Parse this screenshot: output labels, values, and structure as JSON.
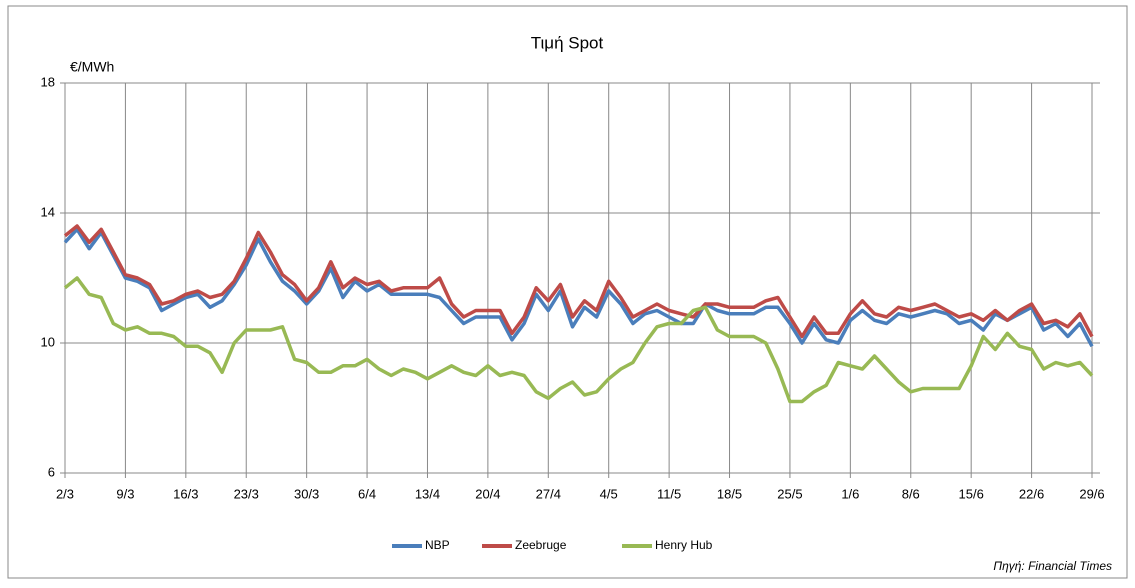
{
  "chart_data": {
    "type": "line",
    "title": "Τιμή Spot",
    "y_label": "€/MWh",
    "source": "Πηγή: Financial Times",
    "categories": [
      "2/3",
      null,
      null,
      null,
      null,
      "9/3",
      null,
      null,
      null,
      null,
      "16/3",
      null,
      null,
      null,
      null,
      "23/3",
      null,
      null,
      null,
      null,
      "30/3",
      null,
      null,
      null,
      null,
      "6/4",
      null,
      null,
      null,
      null,
      "13/4",
      null,
      null,
      null,
      null,
      "20/4",
      null,
      null,
      null,
      null,
      "27/4",
      null,
      null,
      null,
      null,
      "4/5",
      null,
      null,
      null,
      null,
      "11/5",
      null,
      null,
      null,
      null,
      "18/5",
      null,
      null,
      null,
      null,
      "25/5",
      null,
      null,
      null,
      null,
      "1/6",
      null,
      null,
      null,
      null,
      "8/6",
      null,
      null,
      null,
      null,
      "15/6",
      null,
      null,
      null,
      null,
      "22/6",
      null,
      null,
      null,
      null,
      "29/6"
    ],
    "series": [
      {
        "name": "NBP",
        "color": "#4a7ebb",
        "values": [
          13.1,
          13.5,
          12.9,
          13.4,
          12.7,
          12.0,
          11.9,
          11.7,
          11.0,
          11.2,
          11.4,
          11.5,
          11.1,
          11.3,
          11.8,
          12.4,
          13.2,
          12.5,
          11.9,
          11.6,
          11.2,
          11.6,
          12.3,
          11.4,
          11.9,
          11.6,
          11.8,
          11.5,
          11.5,
          11.5,
          11.5,
          11.4,
          11.0,
          10.6,
          10.8,
          10.8,
          10.8,
          10.1,
          10.6,
          11.5,
          11.0,
          11.6,
          10.5,
          11.1,
          10.8,
          11.6,
          11.2,
          10.6,
          10.9,
          11.0,
          10.8,
          10.6,
          10.6,
          11.2,
          11.0,
          10.9,
          10.9,
          10.9,
          11.1,
          11.1,
          10.6,
          10.0,
          10.6,
          10.1,
          10.0,
          10.7,
          11.0,
          10.7,
          10.6,
          10.9,
          10.8,
          10.9,
          11.0,
          10.9,
          10.6,
          10.7,
          10.4,
          10.9,
          10.7,
          10.9,
          11.1,
          10.4,
          10.6,
          10.2,
          10.6,
          9.9
        ]
      },
      {
        "name": "Zeebruge",
        "color": "#be4b48",
        "values": [
          13.3,
          13.6,
          13.1,
          13.5,
          12.8,
          12.1,
          12.0,
          11.8,
          11.2,
          11.3,
          11.5,
          11.6,
          11.4,
          11.5,
          11.9,
          12.6,
          13.4,
          12.8,
          12.1,
          11.8,
          11.3,
          11.7,
          12.5,
          11.7,
          12.0,
          11.8,
          11.9,
          11.6,
          11.7,
          11.7,
          11.7,
          12.0,
          11.2,
          10.8,
          11.0,
          11.0,
          11.0,
          10.3,
          10.8,
          11.7,
          11.3,
          11.8,
          10.8,
          11.3,
          11.0,
          11.9,
          11.4,
          10.8,
          11.0,
          11.2,
          11.0,
          10.9,
          10.8,
          11.2,
          11.2,
          11.1,
          11.1,
          11.1,
          11.3,
          11.4,
          10.8,
          10.2,
          10.8,
          10.3,
          10.3,
          10.9,
          11.3,
          10.9,
          10.8,
          11.1,
          11.0,
          11.1,
          11.2,
          11.0,
          10.8,
          10.9,
          10.7,
          11.0,
          10.7,
          11.0,
          11.2,
          10.6,
          10.7,
          10.5,
          10.9,
          10.2
        ]
      },
      {
        "name": "Henry Hub",
        "color": "#98b954",
        "values": [
          11.7,
          12.0,
          11.5,
          11.4,
          10.6,
          10.4,
          10.5,
          10.3,
          10.3,
          10.2,
          9.9,
          9.9,
          9.7,
          9.1,
          10.0,
          10.4,
          10.4,
          10.4,
          10.5,
          9.5,
          9.4,
          9.1,
          9.1,
          9.3,
          9.3,
          9.5,
          9.2,
          9.0,
          9.2,
          9.1,
          8.9,
          9.1,
          9.3,
          9.1,
          9.0,
          9.3,
          9.0,
          9.1,
          9.0,
          8.5,
          8.3,
          8.6,
          8.8,
          8.4,
          8.5,
          8.9,
          9.2,
          9.4,
          10.0,
          10.5,
          10.6,
          10.6,
          11.0,
          11.1,
          10.4,
          10.2,
          10.2,
          10.2,
          10.0,
          9.2,
          8.2,
          8.2,
          8.5,
          8.7,
          9.4,
          9.3,
          9.2,
          9.6,
          9.2,
          8.8,
          8.5,
          8.6,
          8.6,
          8.6,
          8.6,
          9.3,
          10.2,
          9.8,
          10.3,
          9.9,
          9.8,
          9.2,
          9.4,
          9.3,
          9.4,
          9.0
        ]
      }
    ],
    "ylim": [
      6,
      18
    ],
    "yticks": [
      6,
      10,
      14,
      18
    ],
    "grid": true,
    "legend": "bottom"
  }
}
